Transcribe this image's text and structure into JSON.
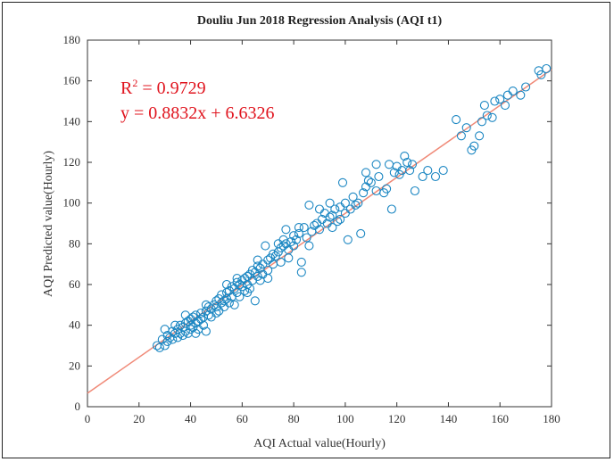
{
  "chart_data": {
    "type": "scatter",
    "title": "Douliu Jun 2018 Regression Analysis (AQI t1)",
    "xlabel": "AQI Actual value(Hourly)",
    "ylabel": "AQI Predicted value(Hourly)",
    "xlim": [
      0,
      180
    ],
    "ylim": [
      0,
      180
    ],
    "xticks": [
      "0",
      "20",
      "40",
      "60",
      "80",
      "100",
      "120",
      "140",
      "160",
      "180"
    ],
    "yticks": [
      "0",
      "20",
      "40",
      "60",
      "80",
      "100",
      "120",
      "140",
      "160",
      "180"
    ],
    "annotations": {
      "r2_prefix": "R",
      "r2_sup": "2",
      "r2_value": " = 0.9729",
      "equation": "y = 0.8832x + 6.6326"
    },
    "fit": {
      "slope": 0.8832,
      "intercept": 6.6326
    },
    "colors": {
      "points": "#1a86c2",
      "fit_line": "#f08a78",
      "annotation": "#e0141e"
    },
    "points": [
      [
        27,
        30
      ],
      [
        28,
        29
      ],
      [
        29,
        33
      ],
      [
        30,
        30
      ],
      [
        31,
        32
      ],
      [
        31,
        35
      ],
      [
        32,
        34
      ],
      [
        33,
        37
      ],
      [
        33,
        33
      ],
      [
        34,
        36
      ],
      [
        35,
        38
      ],
      [
        35,
        34
      ],
      [
        36,
        40
      ],
      [
        36,
        36
      ],
      [
        37,
        35
      ],
      [
        37,
        39
      ],
      [
        38,
        41
      ],
      [
        38,
        37
      ],
      [
        39,
        36
      ],
      [
        39,
        42
      ],
      [
        40,
        40
      ],
      [
        40,
        43
      ],
      [
        40,
        38
      ],
      [
        41,
        44
      ],
      [
        41,
        39
      ],
      [
        42,
        41
      ],
      [
        42,
        45
      ],
      [
        43,
        42
      ],
      [
        43,
        38
      ],
      [
        44,
        46
      ],
      [
        44,
        43
      ],
      [
        45,
        44
      ],
      [
        45,
        40
      ],
      [
        46,
        47
      ],
      [
        46,
        37
      ],
      [
        47,
        45
      ],
      [
        47,
        49
      ],
      [
        48,
        48
      ],
      [
        48,
        44
      ],
      [
        49,
        50
      ],
      [
        50,
        49
      ],
      [
        50,
        52
      ],
      [
        51,
        47
      ],
      [
        51,
        53
      ],
      [
        52,
        51
      ],
      [
        52,
        55
      ],
      [
        53,
        52
      ],
      [
        53,
        49
      ],
      [
        54,
        56
      ],
      [
        54,
        53
      ],
      [
        55,
        57
      ],
      [
        55,
        51
      ],
      [
        56,
        54
      ],
      [
        56,
        59
      ],
      [
        57,
        58
      ],
      [
        57,
        50
      ],
      [
        58,
        56
      ],
      [
        58,
        61
      ],
      [
        59,
        60
      ],
      [
        59,
        54
      ],
      [
        60,
        62
      ],
      [
        60,
        59
      ],
      [
        61,
        57
      ],
      [
        61,
        63
      ],
      [
        62,
        64
      ],
      [
        62,
        60
      ],
      [
        63,
        65
      ],
      [
        63,
        58
      ],
      [
        64,
        62
      ],
      [
        64,
        67
      ],
      [
        65,
        66
      ],
      [
        65,
        52
      ],
      [
        66,
        64
      ],
      [
        66,
        69
      ],
      [
        67,
        68
      ],
      [
        67,
        62
      ],
      [
        68,
        70
      ],
      [
        68,
        65
      ],
      [
        69,
        79
      ],
      [
        70,
        72
      ],
      [
        70,
        67
      ],
      [
        71,
        73
      ],
      [
        72,
        70
      ],
      [
        72,
        75
      ],
      [
        73,
        74
      ],
      [
        74,
        76
      ],
      [
        75,
        71
      ],
      [
        75,
        78
      ],
      [
        76,
        79
      ],
      [
        76,
        82
      ],
      [
        77,
        80
      ],
      [
        77,
        87
      ],
      [
        78,
        77
      ],
      [
        79,
        81
      ],
      [
        80,
        79
      ],
      [
        80,
        84
      ],
      [
        81,
        82
      ],
      [
        82,
        85
      ],
      [
        83,
        66
      ],
      [
        83,
        71
      ],
      [
        84,
        88
      ],
      [
        85,
        83
      ],
      [
        86,
        99
      ],
      [
        87,
        86
      ],
      [
        88,
        89
      ],
      [
        89,
        90
      ],
      [
        90,
        87
      ],
      [
        91,
        92
      ],
      [
        92,
        95
      ],
      [
        93,
        90
      ],
      [
        94,
        93
      ],
      [
        95,
        94
      ],
      [
        95,
        88
      ],
      [
        96,
        97
      ],
      [
        97,
        91
      ],
      [
        98,
        98
      ],
      [
        99,
        110
      ],
      [
        100,
        95
      ],
      [
        100,
        100
      ],
      [
        101,
        82
      ],
      [
        102,
        97
      ],
      [
        103,
        103
      ],
      [
        105,
        100
      ],
      [
        106,
        85
      ],
      [
        107,
        105
      ],
      [
        108,
        108
      ],
      [
        109,
        111
      ],
      [
        110,
        110
      ],
      [
        112,
        119
      ],
      [
        113,
        113
      ],
      [
        115,
        105
      ],
      [
        116,
        107
      ],
      [
        117,
        119
      ],
      [
        118,
        97
      ],
      [
        119,
        115
      ],
      [
        120,
        118
      ],
      [
        122,
        116
      ],
      [
        123,
        123
      ],
      [
        124,
        120
      ],
      [
        125,
        116
      ],
      [
        127,
        106
      ],
      [
        130,
        113
      ],
      [
        132,
        116
      ],
      [
        135,
        113
      ],
      [
        138,
        116
      ],
      [
        143,
        141
      ],
      [
        145,
        133
      ],
      [
        147,
        137
      ],
      [
        149,
        126
      ],
      [
        150,
        128
      ],
      [
        152,
        133
      ],
      [
        153,
        140
      ],
      [
        154,
        148
      ],
      [
        155,
        143
      ],
      [
        157,
        142
      ],
      [
        158,
        150
      ],
      [
        160,
        151
      ],
      [
        162,
        148
      ],
      [
        163,
        153
      ],
      [
        165,
        155
      ],
      [
        168,
        153
      ],
      [
        170,
        157
      ],
      [
        175,
        165
      ],
      [
        176,
        163
      ],
      [
        178,
        166
      ],
      [
        30,
        38
      ],
      [
        34,
        40
      ],
      [
        38,
        45
      ],
      [
        42,
        36
      ],
      [
        46,
        50
      ],
      [
        50,
        46
      ],
      [
        54,
        60
      ],
      [
        58,
        63
      ],
      [
        62,
        56
      ],
      [
        66,
        72
      ],
      [
        70,
        63
      ],
      [
        74,
        80
      ],
      [
        78,
        73
      ],
      [
        82,
        88
      ],
      [
        86,
        79
      ],
      [
        90,
        97
      ],
      [
        94,
        100
      ],
      [
        98,
        92
      ],
      [
        104,
        99
      ],
      [
        108,
        115
      ],
      [
        112,
        106
      ],
      [
        121,
        114
      ],
      [
        126,
        119
      ]
    ]
  }
}
